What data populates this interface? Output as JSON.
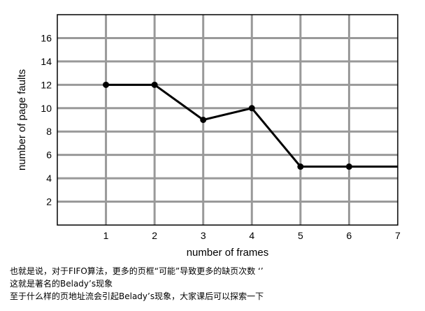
{
  "chart_data": {
    "type": "line",
    "title": "",
    "xlabel": "number of frames",
    "ylabel": "number of page faults",
    "x_ticks": [
      1,
      2,
      3,
      4,
      5,
      6,
      7
    ],
    "y_ticks": [
      2,
      4,
      6,
      8,
      10,
      12,
      14,
      16
    ],
    "xlim": [
      0,
      7
    ],
    "ylim": [
      0,
      18
    ],
    "grid": true,
    "series": [
      {
        "x": [
          1,
          2,
          3,
          4,
          5,
          6,
          7
        ],
        "y": [
          12,
          12,
          9,
          10,
          5,
          5,
          5
        ],
        "markers_at": [
          1,
          2,
          3,
          4,
          5,
          6
        ]
      }
    ]
  },
  "captions": {
    "line1": "也就是说，对于FIFO算法，更多的页框“可能”导致更多的缺页次数 ‘’",
    "line2": "这就是著名的Belady’s现象",
    "line3": "至于什么样的页地址流会引起Belady’s现象，大家课后可以探索一下"
  }
}
